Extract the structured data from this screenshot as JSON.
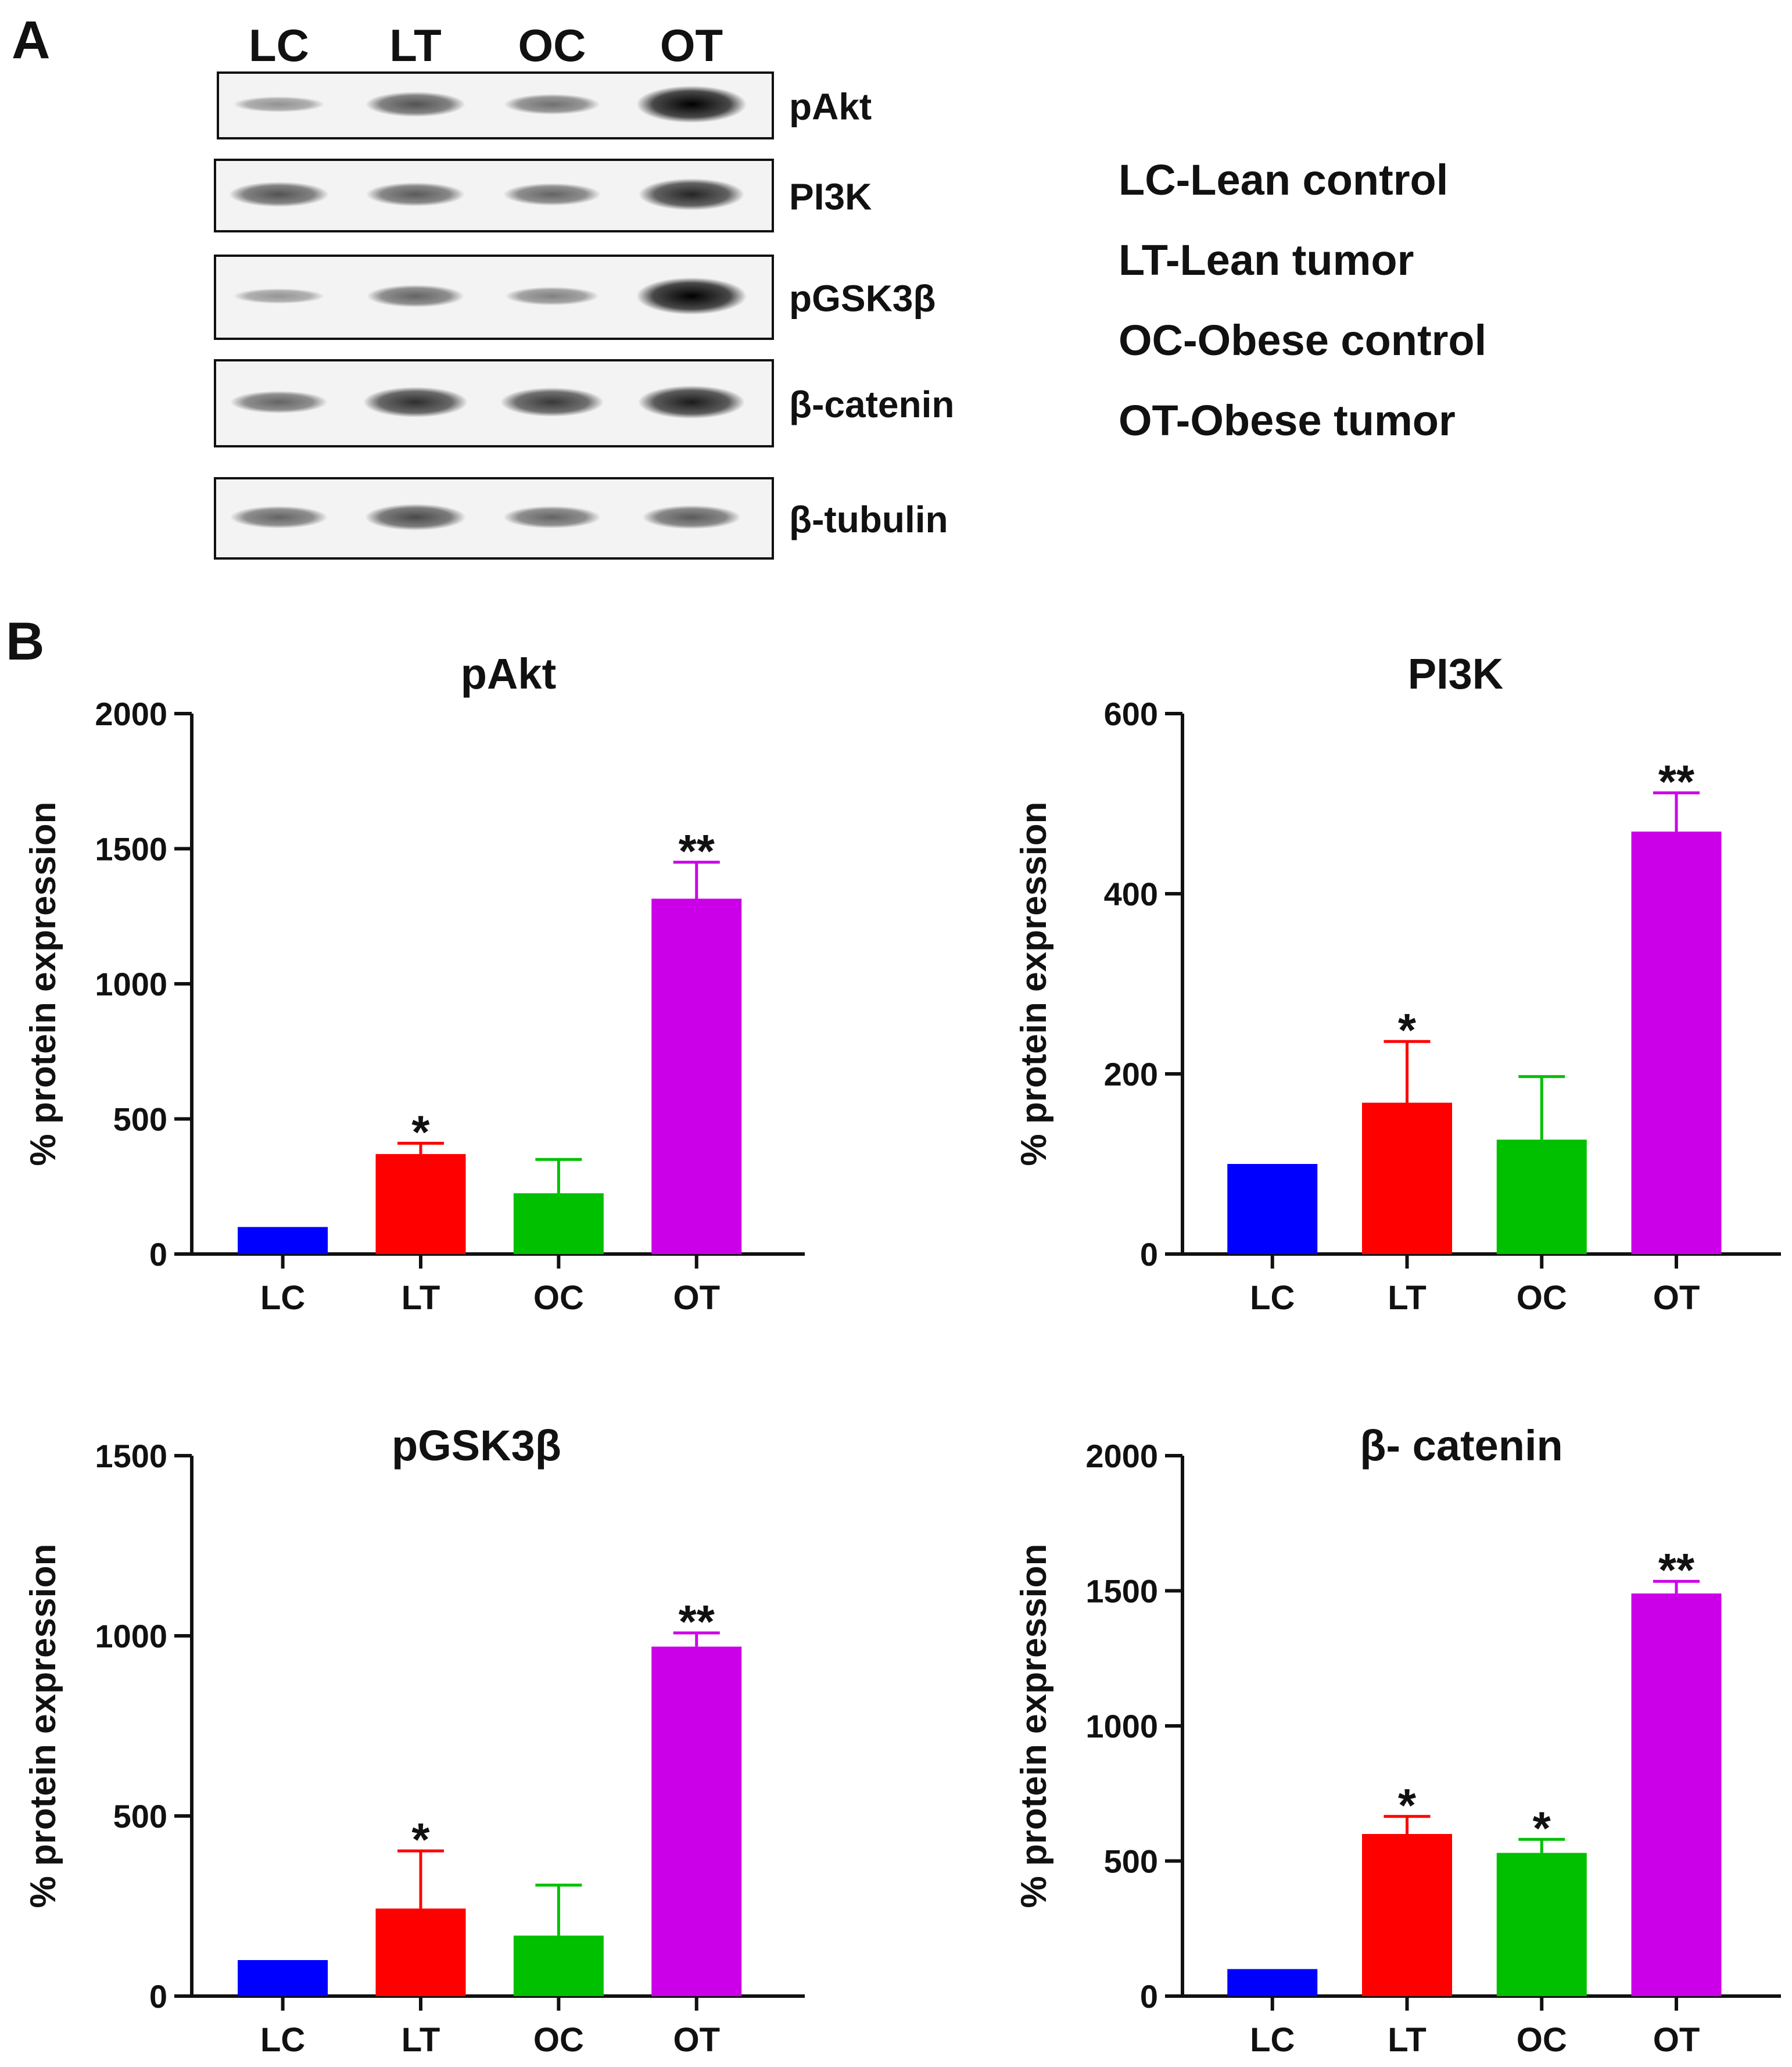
{
  "panel_labels": {
    "a": "A",
    "b": "B"
  },
  "blot": {
    "lane_labels": [
      "LC",
      "LT",
      "OC",
      "OT"
    ],
    "rows": [
      {
        "label": "pAkt",
        "band_intensity": [
          0.2,
          0.55,
          0.38,
          1.0
        ]
      },
      {
        "label": "PI3K",
        "band_intensity": [
          0.55,
          0.5,
          0.45,
          0.8
        ]
      },
      {
        "label": "pGSK3β",
        "band_intensity": [
          0.18,
          0.45,
          0.3,
          1.0
        ]
      },
      {
        "label": "β-catenin",
        "band_intensity": [
          0.45,
          0.75,
          0.7,
          0.85
        ]
      },
      {
        "label": "β-tubulin",
        "band_intensity": [
          0.45,
          0.6,
          0.45,
          0.5
        ]
      }
    ]
  },
  "legend": [
    "LC-Lean control",
    "LT-Lean tumor",
    "OC-Obese control",
    "OT-Obese tumor"
  ],
  "colors": {
    "LC": "#0000ff",
    "LT": "#ff0000",
    "OC": "#00c000",
    "OT": "#cc00e8"
  },
  "chart_data": [
    {
      "type": "bar",
      "title": "pAkt",
      "ylabel": "% protein expression",
      "categories": [
        "LC",
        "LT",
        "OC",
        "OT"
      ],
      "values": [
        100,
        370,
        225,
        1315
      ],
      "errors": [
        0,
        40,
        125,
        135
      ],
      "significance": [
        "",
        "*",
        "",
        "**"
      ],
      "ylim": [
        0,
        2000
      ],
      "yticks": [
        0,
        500,
        1000,
        1500,
        2000
      ]
    },
    {
      "type": "bar",
      "title": "PI3K",
      "ylabel": "% protein expression",
      "categories": [
        "LC",
        "LT",
        "OC",
        "OT"
      ],
      "values": [
        100,
        168,
        127,
        469
      ],
      "errors": [
        0,
        68,
        70,
        43
      ],
      "significance": [
        "",
        "*",
        "",
        "**"
      ],
      "ylim": [
        0,
        600
      ],
      "yticks": [
        0,
        200,
        400,
        600
      ]
    },
    {
      "type": "bar",
      "title": "pGSK3β",
      "ylabel": "% protein expression",
      "categories": [
        "LC",
        "LT",
        "OC",
        "OT"
      ],
      "values": [
        100,
        243,
        168,
        970
      ],
      "errors": [
        0,
        160,
        140,
        38
      ],
      "significance": [
        "",
        "*",
        "",
        "**"
      ],
      "ylim": [
        0,
        1500
      ],
      "yticks": [
        0,
        500,
        1000,
        1500
      ]
    },
    {
      "type": "bar",
      "title": "β- catenin",
      "ylabel": "% protein expression",
      "categories": [
        "LC",
        "LT",
        "OC",
        "OT"
      ],
      "values": [
        100,
        600,
        530,
        1490
      ],
      "errors": [
        0,
        65,
        50,
        45
      ],
      "significance": [
        "",
        "*",
        "*",
        "**"
      ],
      "ylim": [
        0,
        2000
      ],
      "yticks": [
        0,
        500,
        1000,
        1500,
        2000
      ]
    }
  ]
}
